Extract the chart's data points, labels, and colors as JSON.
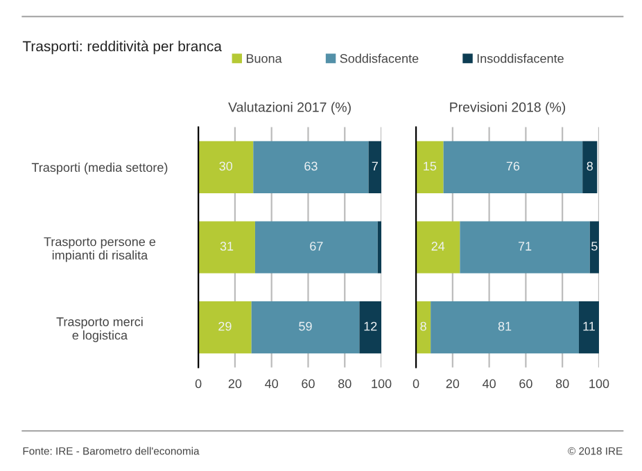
{
  "chart_data": [
    {
      "type": "bar",
      "orientation": "horizontal",
      "stacked": true,
      "title": "Valutazioni 2017 (%)",
      "annotations": [
        "Trasporti: redditività per branca",
        "Fonte: IRE - Barometro dell'economia",
        "© 2018 IRE"
      ],
      "categories": [
        "Trasporti (media settore)",
        "Trasporto persone e\nimpianti di risalita",
        "Trasporto merci\ne logistica"
      ],
      "series": [
        {
          "name": "Buona",
          "color": "#b5c935",
          "values": [
            30,
            31,
            29
          ]
        },
        {
          "name": "Soddisfacente",
          "color": "#5390a8",
          "values": [
            63,
            67,
            59
          ]
        },
        {
          "name": "Insoddisfacente",
          "color": "#0d3d53",
          "values": [
            7,
            2,
            12
          ],
          "value_labels": [
            "7",
            null,
            "12"
          ]
        }
      ],
      "xlim": [
        0,
        100
      ],
      "xticks": [
        0,
        20,
        40,
        60,
        80,
        100
      ],
      "grid": "x",
      "legend": "top",
      "data_labels": true
    },
    {
      "type": "bar",
      "orientation": "horizontal",
      "stacked": true,
      "title": "Previsioni 2018 (%)",
      "categories": [
        null,
        null,
        null
      ],
      "series": [
        {
          "color": "#b5c935",
          "values": [
            15,
            24,
            8
          ]
        },
        {
          "color": "#5390a8",
          "values": [
            76,
            71,
            81
          ]
        },
        {
          "color": "#0d3d53",
          "values": [
            8,
            5,
            11
          ]
        }
      ],
      "xlim": [
        0,
        100
      ],
      "xticks": [
        0,
        20,
        40,
        60,
        80,
        100
      ],
      "grid": "x",
      "tick_labels": "x",
      "data_labels": true
    }
  ]
}
